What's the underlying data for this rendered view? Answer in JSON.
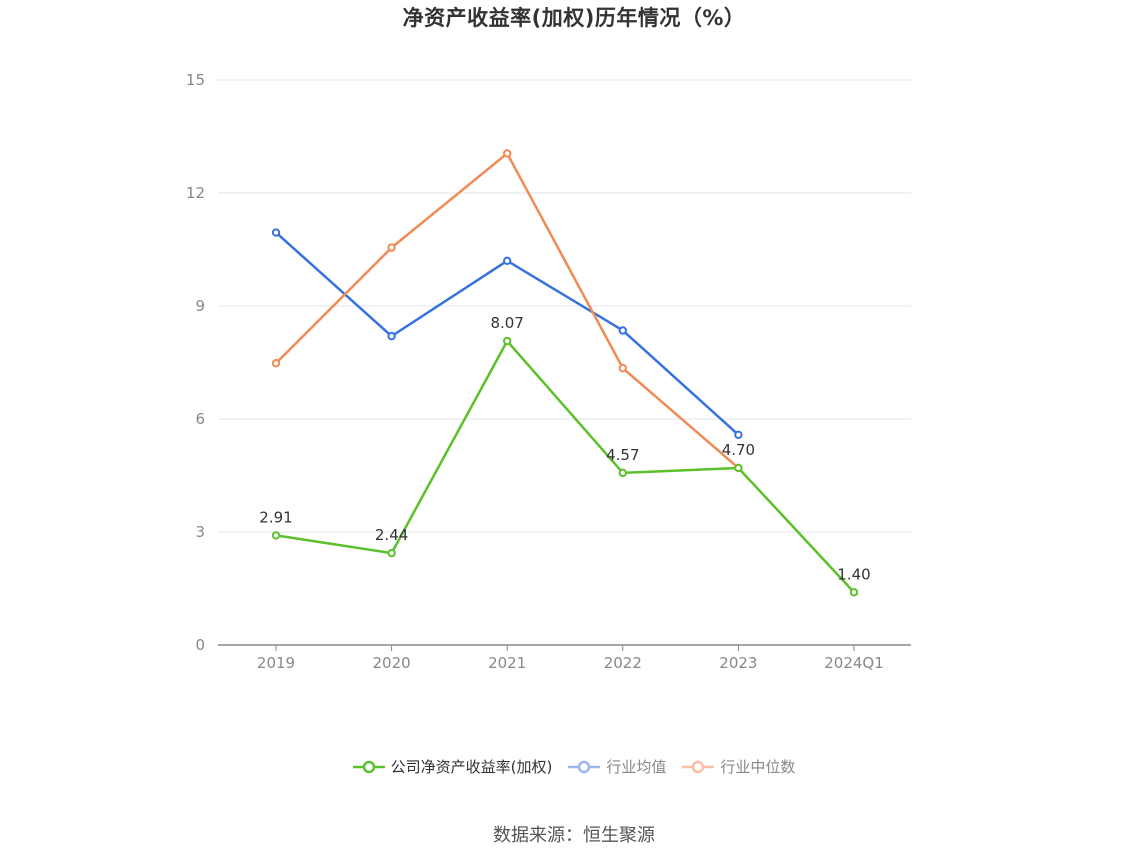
{
  "title": "净资产收益率(加权)历年情况（%）",
  "source": "数据来源：恒生聚源",
  "chart_data": {
    "type": "line",
    "title": "净资产收益率(加权)历年情况（%）",
    "categories": [
      "2019",
      "2020",
      "2021",
      "2022",
      "2023",
      "2024Q1"
    ],
    "ylim": [
      0,
      15
    ],
    "yticks": [
      0,
      3,
      6,
      9,
      12,
      15
    ],
    "grid": true,
    "legend_position": "bottom",
    "series": [
      {
        "name": "公司净资产收益率(加权)",
        "color": "#5cc02a",
        "values": [
          2.91,
          2.44,
          8.07,
          4.57,
          4.7,
          1.4
        ],
        "labels": [
          "2.91",
          "2.44",
          "8.07",
          "4.57",
          "4.70",
          "1.40"
        ]
      },
      {
        "name": "行业均值",
        "color": "#3572e0",
        "values": [
          10.95,
          8.2,
          10.2,
          8.35,
          5.58,
          null
        ]
      },
      {
        "name": "行业中位数",
        "color": "#f28a55",
        "values": [
          7.48,
          10.55,
          13.05,
          7.35,
          4.7,
          null
        ]
      }
    ]
  }
}
